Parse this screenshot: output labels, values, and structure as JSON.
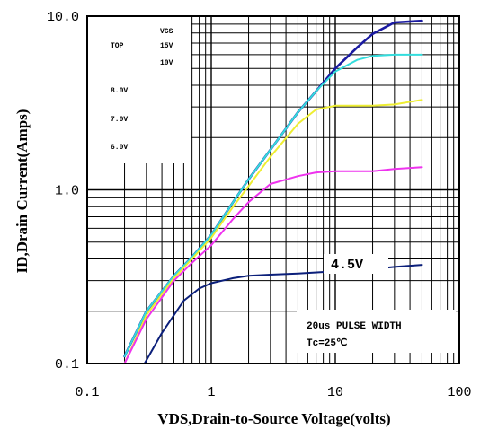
{
  "chart_data": {
    "type": "line",
    "xscale": "log",
    "yscale": "log",
    "xlim": [
      0.1,
      100
    ],
    "ylim": [
      0.1,
      10.0
    ],
    "xlabel": "VDS,Drain-to-Source Voltage(volts)",
    "ylabel": "ID,Drain Current(Amps)",
    "x_ticks": [
      "0.1",
      "1",
      "10",
      "100"
    ],
    "y_ticks": [
      "0.1",
      "1.0",
      "10.0"
    ],
    "grid": true,
    "legend": {
      "header": "VGS",
      "rows": [
        {
          "tag": "TOP",
          "value": "15V"
        },
        {
          "tag": "",
          "value": "10V"
        },
        {
          "tag": "",
          "value": "8.0V"
        },
        {
          "tag": "",
          "value": "7.0V"
        },
        {
          "tag": "",
          "value": "6.0V"
        }
      ]
    },
    "annotations": [
      "4.5V",
      "20us PULSE WIDTH",
      "Tc=25℃"
    ],
    "series": [
      {
        "name": "15V",
        "color": "#1a1aa0",
        "x": [
          0.2,
          0.3,
          0.5,
          0.7,
          1,
          1.5,
          2,
          3,
          5,
          7,
          10,
          15,
          20,
          30,
          50
        ],
        "y": [
          0.11,
          0.2,
          0.32,
          0.41,
          0.55,
          0.85,
          1.15,
          1.7,
          2.8,
          3.7,
          5.0,
          6.6,
          7.9,
          9.2,
          9.4
        ]
      },
      {
        "name": "10V",
        "color": "#33dddd",
        "x": [
          0.2,
          0.3,
          0.5,
          0.7,
          1,
          1.5,
          2,
          3,
          5,
          7,
          10,
          15,
          20,
          30,
          50
        ],
        "y": [
          0.11,
          0.2,
          0.32,
          0.41,
          0.55,
          0.85,
          1.15,
          1.7,
          2.8,
          3.7,
          4.8,
          5.6,
          5.9,
          6.0,
          6.0
        ]
      },
      {
        "name": "8.0V",
        "color": "#eeee33",
        "x": [
          0.2,
          0.3,
          0.5,
          0.7,
          1,
          1.5,
          2,
          3,
          5,
          7,
          10,
          15,
          20,
          30,
          50
        ],
        "y": [
          0.1,
          0.19,
          0.31,
          0.4,
          0.53,
          0.8,
          1.05,
          1.55,
          2.4,
          2.9,
          3.05,
          3.05,
          3.05,
          3.1,
          3.3
        ]
      },
      {
        "name": "6.0V",
        "color": "#ee33ee",
        "x": [
          0.2,
          0.3,
          0.5,
          0.7,
          1,
          1.5,
          2,
          3,
          5,
          7,
          10,
          15,
          20,
          30,
          50
        ],
        "y": [
          0.1,
          0.18,
          0.3,
          0.38,
          0.48,
          0.68,
          0.85,
          1.08,
          1.2,
          1.26,
          1.28,
          1.28,
          1.28,
          1.32,
          1.35
        ]
      },
      {
        "name": "4.5V",
        "color": "#0b1f7a",
        "x": [
          0.29,
          0.4,
          0.6,
          0.8,
          1,
          1.5,
          2,
          3,
          5,
          10,
          20,
          30,
          50
        ],
        "y": [
          0.1,
          0.15,
          0.23,
          0.27,
          0.29,
          0.31,
          0.32,
          0.325,
          0.33,
          0.34,
          0.35,
          0.36,
          0.37
        ]
      }
    ]
  }
}
